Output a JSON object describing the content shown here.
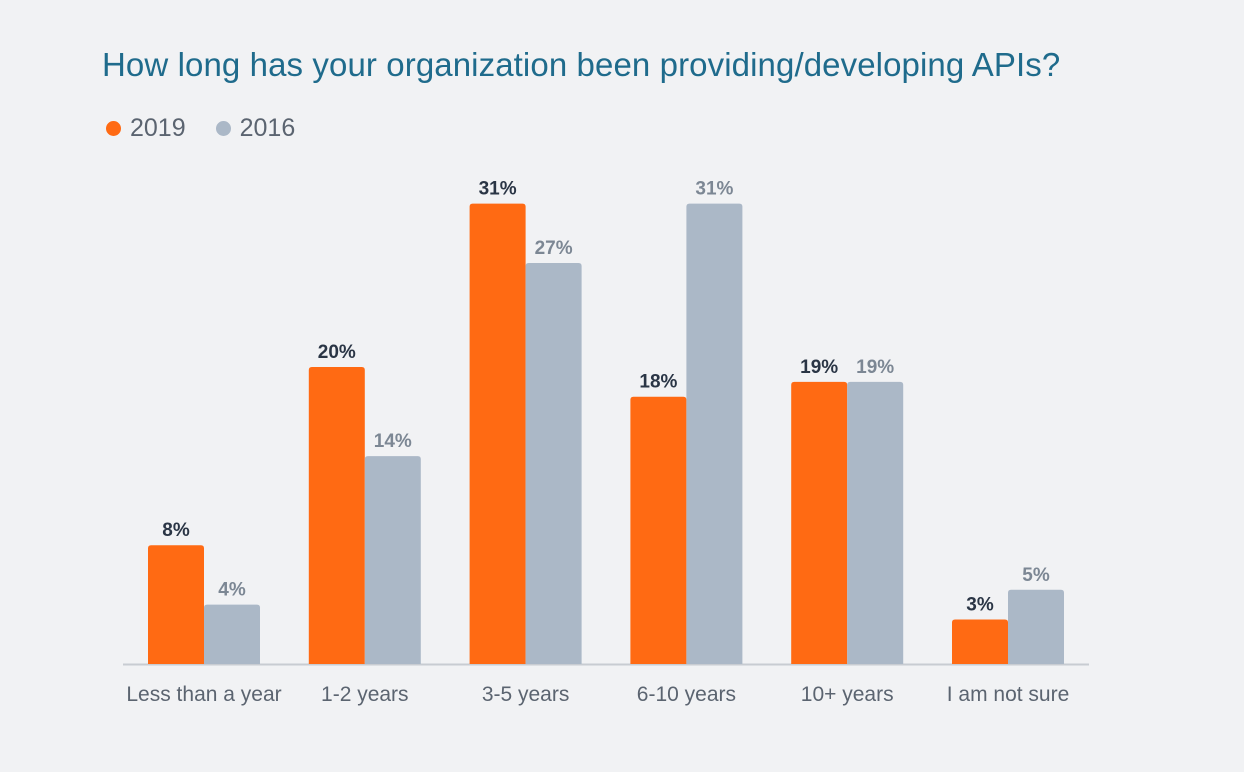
{
  "colors": {
    "series_2019": "#ff6a13",
    "series_2016": "#abb8c7",
    "label_2019": "#2a3545",
    "label_2016": "#7c8794",
    "axis": "#c8ccd2"
  },
  "chart_data": {
    "type": "bar",
    "title": "How long has your organization been providing/developing APIs?",
    "xlabel": "",
    "ylabel": "",
    "ylim": [
      0,
      31
    ],
    "grid": false,
    "legend_position": "top-left",
    "categories": [
      "Less than a year",
      "1-2 years",
      "3-5 years",
      "6-10 years",
      "10+ years",
      "I am not sure"
    ],
    "series": [
      {
        "name": "2019",
        "values": [
          8,
          20,
          31,
          18,
          19,
          3
        ],
        "labels": [
          "8%",
          "20%",
          "31%",
          "18%",
          "19%",
          "3%"
        ]
      },
      {
        "name": "2016",
        "values": [
          4,
          14,
          27,
          31,
          19,
          5
        ],
        "labels": [
          "4%",
          "14%",
          "27%",
          "31%",
          "19%",
          "5%"
        ]
      }
    ]
  }
}
